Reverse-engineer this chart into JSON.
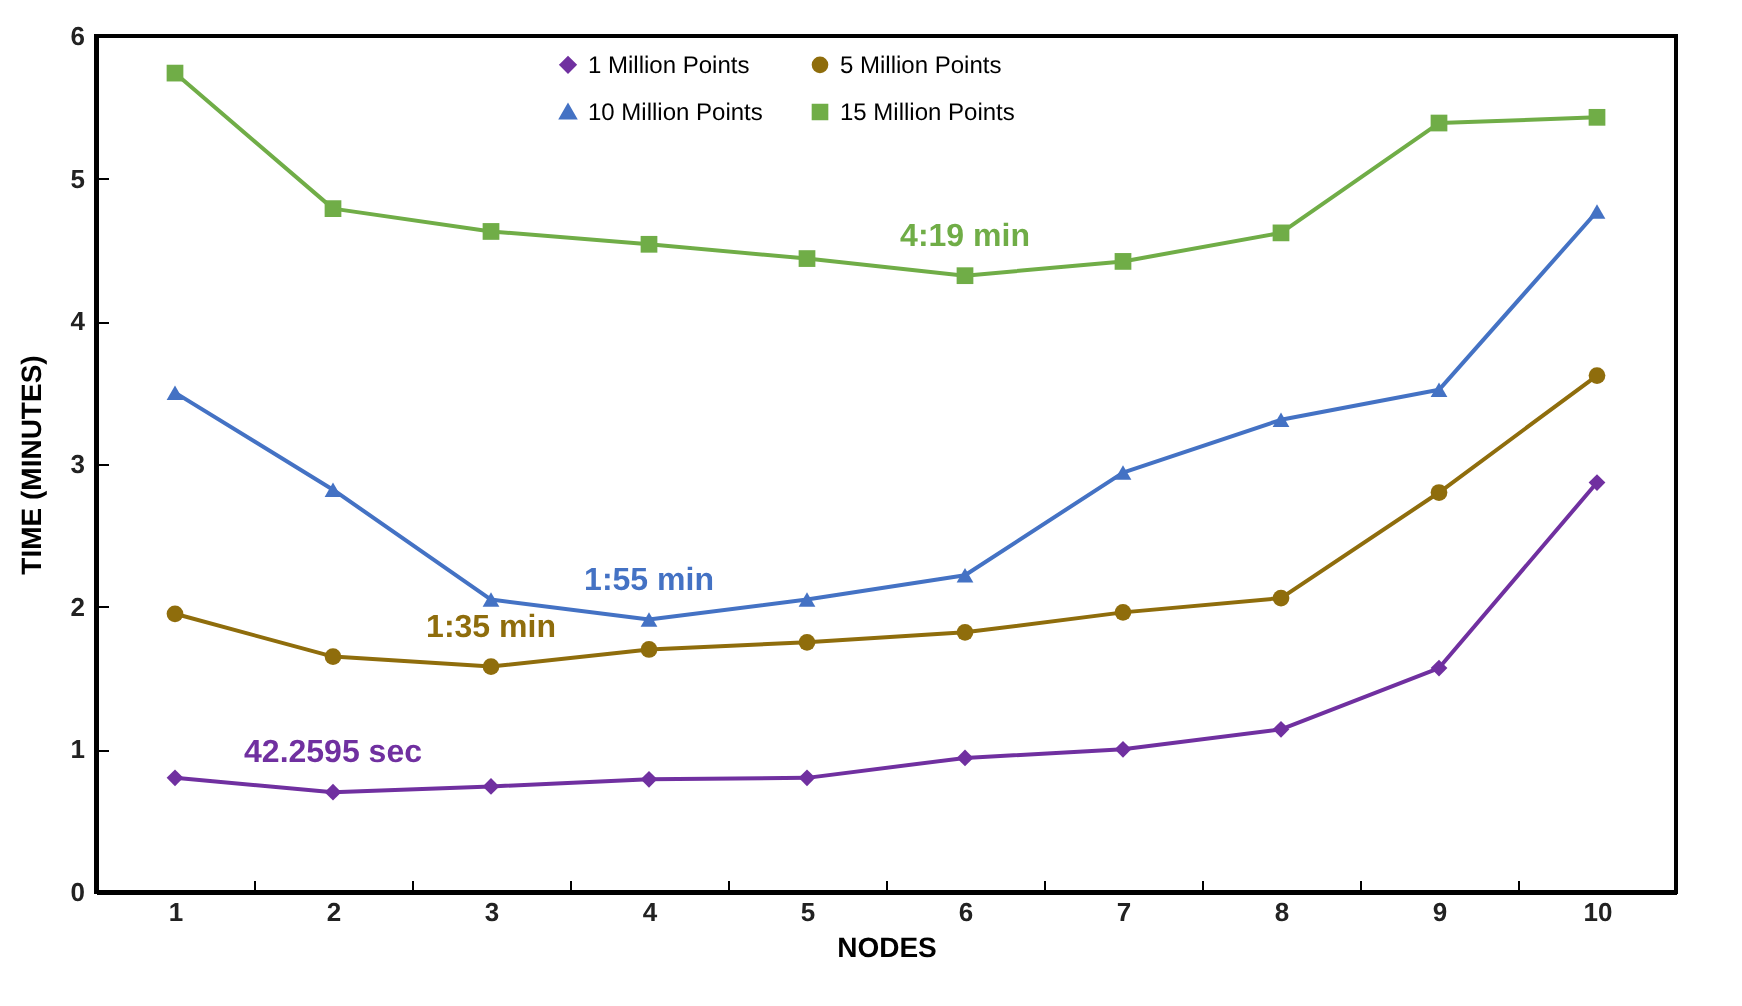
{
  "chart_data": {
    "type": "line",
    "xlabel": "NODES",
    "ylabel": "TIME (MINUTES)",
    "categories": [
      "1",
      "2",
      "3",
      "4",
      "5",
      "6",
      "7",
      "8",
      "9",
      "10"
    ],
    "series": [
      {
        "name": "1 Million Points",
        "color": "#7030a0",
        "marker": "diamond",
        "values": [
          0.8,
          0.7,
          0.74,
          0.79,
          0.8,
          0.94,
          1.0,
          1.14,
          1.57,
          2.87
        ]
      },
      {
        "name": "5 Million Points",
        "color": "#8f6d0c",
        "marker": "circle",
        "values": [
          1.95,
          1.65,
          1.58,
          1.7,
          1.75,
          1.82,
          1.96,
          2.06,
          2.8,
          3.62
        ]
      },
      {
        "name": "10 Million Points",
        "color": "#4472c4",
        "marker": "triangle",
        "values": [
          3.5,
          2.82,
          2.05,
          1.91,
          2.05,
          2.22,
          2.94,
          3.31,
          3.52,
          4.77
        ]
      },
      {
        "name": "15 Million Points",
        "color": "#70ad47",
        "marker": "square",
        "values": [
          5.74,
          4.79,
          4.63,
          4.54,
          4.44,
          4.32,
          4.42,
          4.62,
          5.39,
          5.43
        ]
      }
    ],
    "annotations": [
      {
        "text": "42.2595 sec",
        "x": "2",
        "y": 0.7
      },
      {
        "text": "1:35 min",
        "x": "3",
        "y": 1.58
      },
      {
        "text": "1:55 min",
        "x": "4",
        "y": 1.91
      },
      {
        "text": "4:19 min",
        "x": "6",
        "y": 4.32
      }
    ],
    "ylim": [
      0,
      6
    ],
    "yticks": [
      0,
      1,
      2,
      3,
      4,
      5,
      6
    ],
    "grid": false,
    "legend": "top",
    "line_style": "solid"
  }
}
